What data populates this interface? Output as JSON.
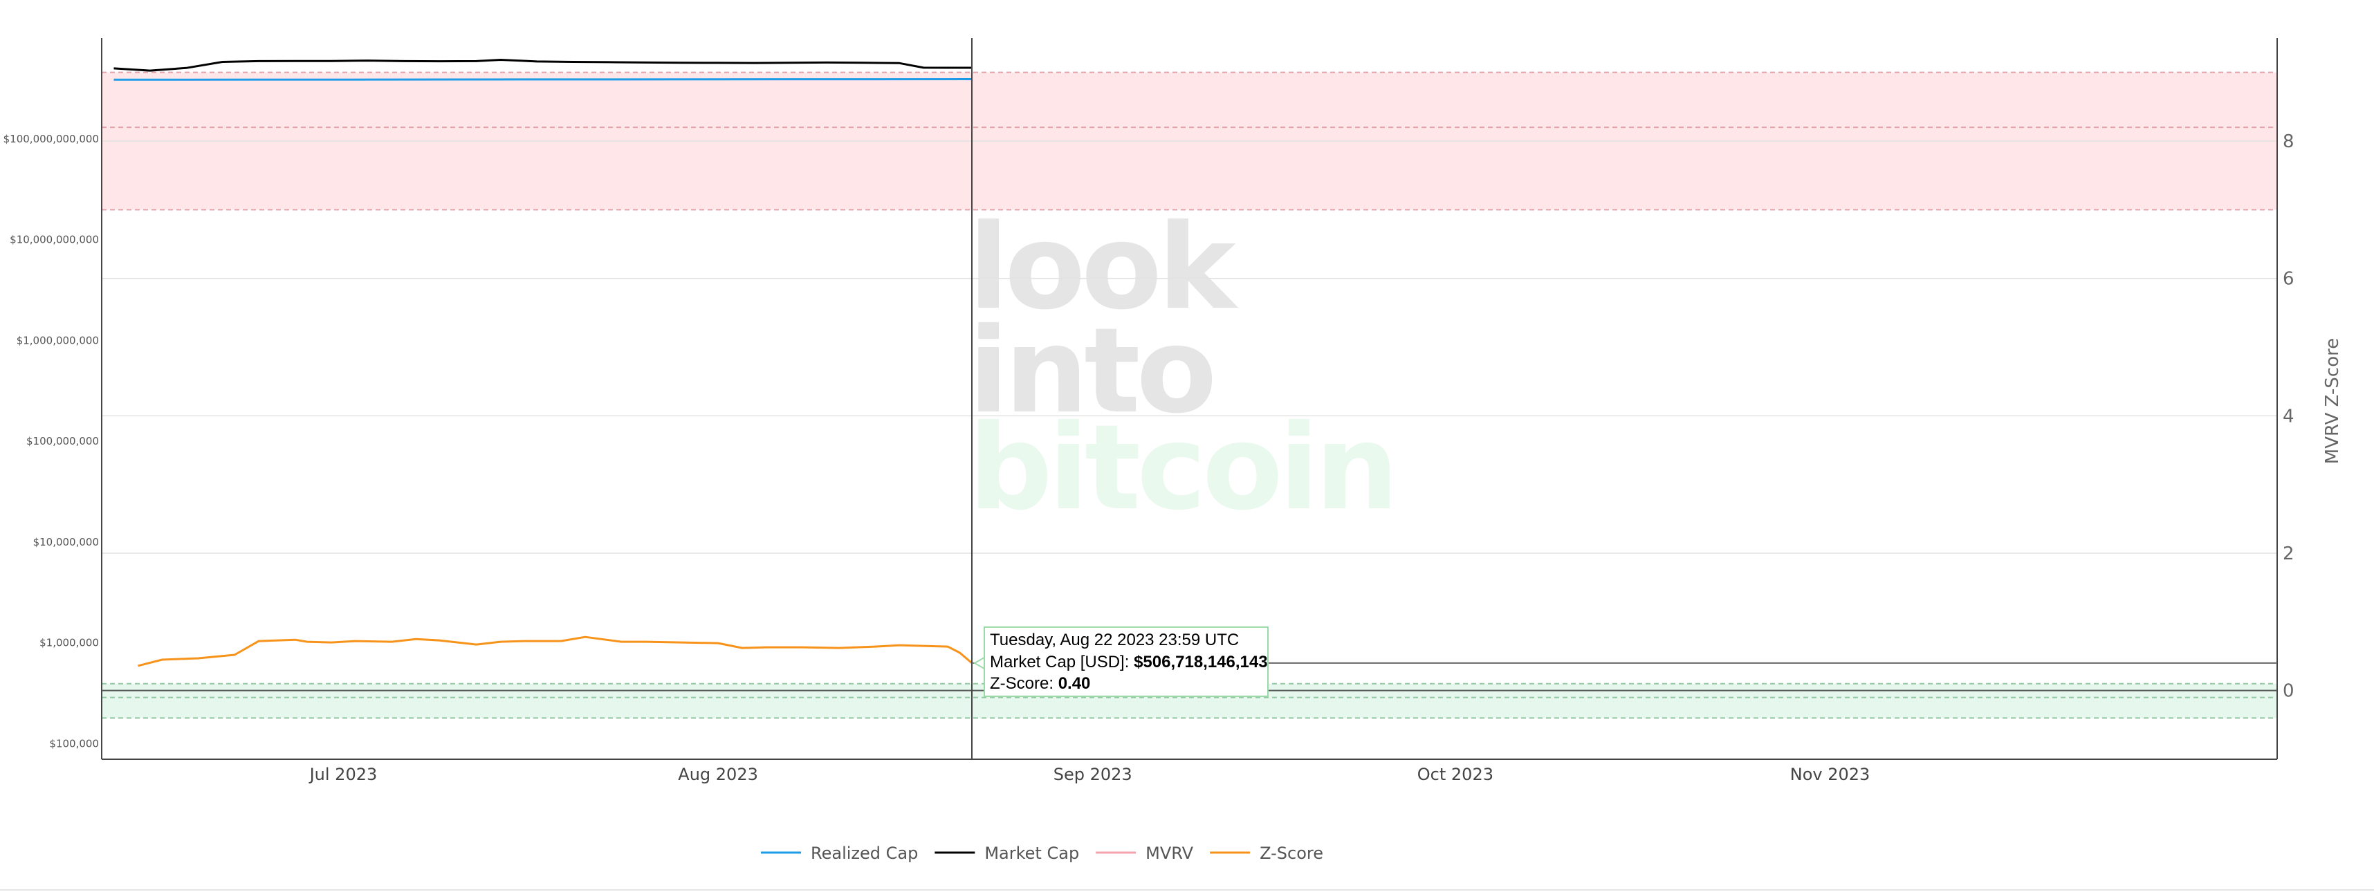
{
  "chart_data": {
    "type": "line",
    "watermark": [
      "look",
      "into",
      "bitcoin"
    ],
    "x_ticks": [
      "Jul 2023",
      "Aug 2023",
      "Sep 2023",
      "Oct 2023",
      "Nov 2023"
    ],
    "x_range": [
      "2023-06-11",
      "2023-12-08"
    ],
    "left_axis": {
      "scale": "log",
      "range": [
        70000,
        1000000000000
      ],
      "ticks": [
        {
          "value": 100000,
          "label": "$100,000"
        },
        {
          "value": 1000000,
          "label": "$1,000,000"
        },
        {
          "value": 10000000,
          "label": "$10,000,000"
        },
        {
          "value": 100000000,
          "label": "$100,000,000"
        },
        {
          "value": 1000000000,
          "label": "$1,000,000,000"
        },
        {
          "value": 10000000000,
          "label": "$10,000,000,000"
        },
        {
          "value": 100000000000,
          "label": "$100,000,000,000"
        }
      ]
    },
    "right_axis": {
      "title": "MVRV Z-Score",
      "scale": "linear",
      "range": [
        -1,
        9.5
      ],
      "ticks": [
        {
          "value": 0,
          "label": "0"
        },
        {
          "value": 2,
          "label": "2"
        },
        {
          "value": 4,
          "label": "4"
        },
        {
          "value": 6,
          "label": "6"
        },
        {
          "value": 8,
          "label": "8"
        }
      ]
    },
    "zones": [
      {
        "name": "top",
        "from": 7,
        "to": 9,
        "mid": 8.2,
        "color": "#ffe6e9",
        "line": "#e8a0a8"
      },
      {
        "name": "bottom",
        "from": -0.4,
        "to": 0.1,
        "mid": -0.1,
        "color": "#e6f7ee",
        "line": "#8fc9a0"
      }
    ],
    "series": [
      {
        "name": "Realized Cap",
        "color": "#1e9be6",
        "axis": "left",
        "x": [
          "2023-06-12",
          "2023-08-22"
        ],
        "values": [
          386000000000,
          391000000000
        ]
      },
      {
        "name": "Market Cap",
        "color": "#000000",
        "axis": "left",
        "x": [
          "2023-06-12",
          "2023-06-15",
          "2023-06-18",
          "2023-06-21",
          "2023-06-24",
          "2023-06-27",
          "2023-06-30",
          "2023-07-03",
          "2023-07-06",
          "2023-07-09",
          "2023-07-12",
          "2023-07-14",
          "2023-07-17",
          "2023-07-20",
          "2023-07-23",
          "2023-07-26",
          "2023-07-29",
          "2023-08-01",
          "2023-08-04",
          "2023-08-07",
          "2023-08-10",
          "2023-08-13",
          "2023-08-16",
          "2023-08-18",
          "2023-08-20",
          "2023-08-22"
        ],
        "values": [
          500000000000,
          475000000000,
          505000000000,
          580000000000,
          590000000000,
          592000000000,
          592000000000,
          598000000000,
          590000000000,
          588000000000,
          590000000000,
          608000000000,
          585000000000,
          580000000000,
          576000000000,
          572000000000,
          568000000000,
          567000000000,
          565000000000,
          568000000000,
          572000000000,
          568000000000,
          564000000000,
          508000000000,
          507000000000,
          506718146143
        ]
      },
      {
        "name": "MVRV",
        "color": "#f4a3ad",
        "axis": "right",
        "hidden": true,
        "x": [],
        "values": []
      },
      {
        "name": "Z-Score",
        "color": "#f7931a",
        "axis": "right",
        "x": [
          "2023-06-14",
          "2023-06-16",
          "2023-06-19",
          "2023-06-22",
          "2023-06-24",
          "2023-06-27",
          "2023-06-28",
          "2023-06-30",
          "2023-07-02",
          "2023-07-05",
          "2023-07-07",
          "2023-07-09",
          "2023-07-12",
          "2023-07-14",
          "2023-07-16",
          "2023-07-19",
          "2023-07-21",
          "2023-07-24",
          "2023-07-26",
          "2023-07-29",
          "2023-08-01",
          "2023-08-03",
          "2023-08-05",
          "2023-08-08",
          "2023-08-11",
          "2023-08-14",
          "2023-08-16",
          "2023-08-18",
          "2023-08-20",
          "2023-08-21",
          "2023-08-22"
        ],
        "values": [
          0.36,
          0.45,
          0.47,
          0.52,
          0.72,
          0.74,
          0.71,
          0.7,
          0.72,
          0.71,
          0.75,
          0.73,
          0.67,
          0.71,
          0.72,
          0.72,
          0.78,
          0.71,
          0.71,
          0.7,
          0.69,
          0.62,
          0.63,
          0.63,
          0.62,
          0.64,
          0.66,
          0.65,
          0.64,
          0.55,
          0.4
        ]
      }
    ],
    "legend": {
      "placement": "bottom-center",
      "items": [
        {
          "name": "Realized Cap",
          "color": "#1e9be6",
          "muted": false
        },
        {
          "name": "Market Cap",
          "color": "#000000",
          "muted": false
        },
        {
          "name": "MVRV",
          "color": "#f4a3ad",
          "muted": true
        },
        {
          "name": "Z-Score",
          "color": "#f7931a",
          "muted": false
        }
      ]
    },
    "hover": {
      "date": "2023-08-22",
      "z_value": 0.4,
      "line1": "Tuesday, Aug 22 2023 23:59 UTC",
      "line2_label": "Market Cap [USD]: ",
      "line2_value": "$506,718,146,143",
      "line3_label": "Z-Score: ",
      "line3_value": "0.40"
    }
  }
}
